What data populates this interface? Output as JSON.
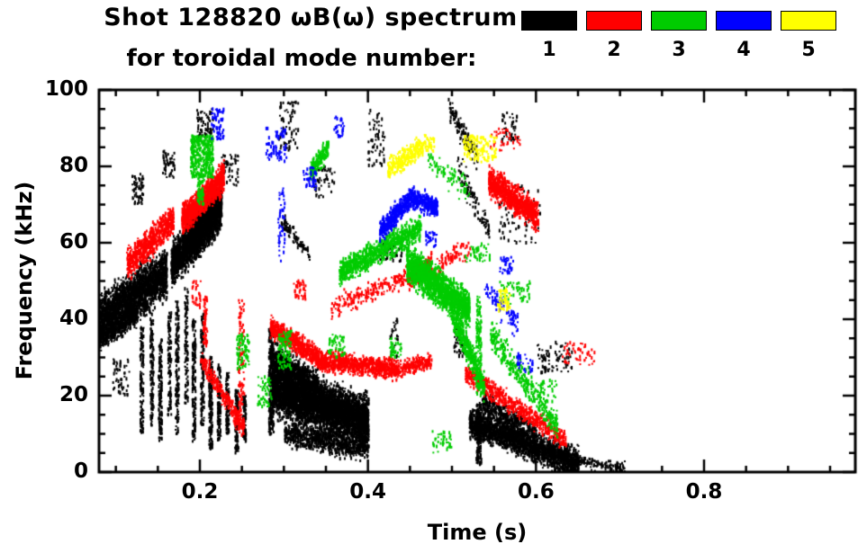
{
  "header": {
    "title_line1": "Shot 128820 ωB(ω) spectrum",
    "title_line2": "for toroidal mode number:"
  },
  "legend": {
    "items": [
      {
        "label": "1",
        "color": "#000000"
      },
      {
        "label": "2",
        "color": "#ff0000"
      },
      {
        "label": "3",
        "color": "#00cc00"
      },
      {
        "label": "4",
        "color": "#0000ff"
      },
      {
        "label": "5",
        "color": "#ffff00"
      }
    ]
  },
  "chart_data": {
    "type": "scatter",
    "title": "Shot 128820 ωB(ω) spectrum for toroidal mode number: 1 2 3 4 5",
    "xlabel": "Time (s)",
    "ylabel": "Frequency (kHz)",
    "xlim": [
      0.08,
      0.98
    ],
    "ylim": [
      0,
      100
    ],
    "grid": false,
    "legend_position": "top-right",
    "x_major_ticks": [
      {
        "value": 0.2,
        "label": "0.2"
      },
      {
        "value": 0.4,
        "label": "0.4"
      },
      {
        "value": 0.6,
        "label": "0.6"
      },
      {
        "value": 0.8,
        "label": "0.8"
      }
    ],
    "x_minor_step": 0.05,
    "y_major_ticks": [
      {
        "value": 0,
        "label": "0"
      },
      {
        "value": 20,
        "label": "20"
      },
      {
        "value": 40,
        "label": "40"
      },
      {
        "value": 60,
        "label": "60"
      },
      {
        "value": 80,
        "label": "80"
      },
      {
        "value": 100,
        "label": "100"
      }
    ],
    "y_minor_step": 5,
    "cluster_format": [
      "t_start_s",
      "t_end_s",
      "freq_start_kHz",
      "freq_end_kHz",
      "freq_spread_kHz",
      "point_count",
      "dist: g=gaussian about trend line, u=uniform in freq range"
    ],
    "series": [
      {
        "name": "toroidal mode n=1",
        "mode": 1,
        "color": "#000000",
        "clusters": [
          [
            0.068,
            0.16,
            38,
            52,
            6,
            2600,
            "g"
          ],
          [
            0.075,
            0.125,
            34,
            42,
            3,
            500,
            "g"
          ],
          [
            0.165,
            0.225,
            54,
            69,
            5,
            2200,
            "g"
          ],
          [
            0.182,
            0.225,
            64,
            72,
            3,
            500,
            "g"
          ],
          [
            0.118,
            0.132,
            70,
            78,
            0,
            60,
            "u"
          ],
          [
            0.155,
            0.17,
            77,
            84,
            0,
            50,
            "u"
          ],
          [
            0.128,
            0.132,
            10,
            38,
            0,
            130,
            "u"
          ],
          [
            0.14,
            0.144,
            12,
            40,
            0,
            120,
            "u"
          ],
          [
            0.15,
            0.154,
            8,
            35,
            0,
            150,
            "u"
          ],
          [
            0.161,
            0.165,
            15,
            42,
            0,
            100,
            "u"
          ],
          [
            0.17,
            0.174,
            10,
            45,
            0,
            140,
            "u"
          ],
          [
            0.181,
            0.185,
            18,
            48,
            0,
            110,
            "u"
          ],
          [
            0.19,
            0.194,
            8,
            40,
            0,
            150,
            "u"
          ],
          [
            0.2,
            0.204,
            12,
            42,
            0,
            120,
            "u"
          ],
          [
            0.21,
            0.214,
            6,
            30,
            0,
            140,
            "u"
          ],
          [
            0.22,
            0.224,
            8,
            28,
            0,
            120,
            "u"
          ],
          [
            0.23,
            0.234,
            10,
            26,
            0,
            100,
            "u"
          ],
          [
            0.241,
            0.245,
            5,
            22,
            0,
            120,
            "u"
          ],
          [
            0.25,
            0.254,
            8,
            20,
            0,
            80,
            "u"
          ],
          [
            0.195,
            0.215,
            87,
            95,
            0,
            70,
            "u"
          ],
          [
            0.225,
            0.245,
            75,
            83,
            0,
            50,
            "u"
          ],
          [
            0.285,
            0.4,
            22,
            13,
            6,
            4500,
            "g"
          ],
          [
            0.283,
            0.34,
            30,
            22,
            4,
            900,
            "g"
          ],
          [
            0.3,
            0.4,
            10,
            6,
            3,
            800,
            "g"
          ],
          [
            0.281,
            0.287,
            10,
            38,
            0,
            250,
            "u"
          ],
          [
            0.295,
            0.33,
            66,
            57,
            2,
            90,
            "g"
          ],
          [
            0.293,
            0.316,
            84,
            97,
            0,
            70,
            "u"
          ],
          [
            0.33,
            0.36,
            72,
            80,
            0,
            50,
            "u"
          ],
          [
            0.398,
            0.42,
            80,
            95,
            0,
            60,
            "u"
          ],
          [
            0.41,
            0.44,
            55,
            60,
            0,
            40,
            "u"
          ],
          [
            0.425,
            0.435,
            30,
            40,
            0,
            30,
            "u"
          ],
          [
            0.5,
            0.515,
            30,
            38,
            0,
            40,
            "u"
          ],
          [
            0.495,
            0.53,
            95,
            82,
            3,
            120,
            "g"
          ],
          [
            0.505,
            0.545,
            80,
            62,
            4,
            100,
            "g"
          ],
          [
            0.555,
            0.605,
            60,
            75,
            0,
            80,
            "u"
          ],
          [
            0.558,
            0.578,
            86,
            94,
            0,
            40,
            "u"
          ],
          [
            0.52,
            0.65,
            13,
            2,
            3.5,
            2200,
            "g"
          ],
          [
            0.528,
            0.534,
            2,
            18,
            0,
            150,
            "u"
          ],
          [
            0.535,
            0.6,
            18,
            10,
            3,
            400,
            "g"
          ],
          [
            0.645,
            0.705,
            3,
            1,
            1.5,
            120,
            "g"
          ],
          [
            0.6,
            0.645,
            26,
            34,
            0,
            80,
            "u"
          ],
          [
            0.095,
            0.115,
            20,
            30,
            0,
            50,
            "u"
          ]
        ]
      },
      {
        "name": "toroidal mode n=2",
        "mode": 2,
        "color": "#ff0000",
        "clusters": [
          [
            0.112,
            0.168,
            54,
            66,
            3.5,
            700,
            "g"
          ],
          [
            0.178,
            0.228,
            66,
            77,
            3.5,
            1100,
            "g"
          ],
          [
            0.2,
            0.252,
            30,
            11,
            2.5,
            300,
            "g"
          ],
          [
            0.203,
            0.208,
            33,
            46,
            0,
            60,
            "u"
          ],
          [
            0.283,
            0.345,
            38,
            29,
            2.5,
            700,
            "g"
          ],
          [
            0.345,
            0.435,
            29,
            27,
            2.5,
            800,
            "g"
          ],
          [
            0.435,
            0.475,
            27,
            29,
            2,
            200,
            "g"
          ],
          [
            0.355,
            0.5,
            43,
            56,
            2.5,
            300,
            "g"
          ],
          [
            0.445,
            0.475,
            50,
            55,
            2.5,
            200,
            "g"
          ],
          [
            0.543,
            0.602,
            76,
            67,
            3.5,
            900,
            "g"
          ],
          [
            0.515,
            0.635,
            26,
            8,
            2.5,
            600,
            "g"
          ],
          [
            0.245,
            0.252,
            12,
            45,
            0,
            90,
            "u"
          ],
          [
            0.31,
            0.325,
            45,
            50,
            0,
            40,
            "u"
          ],
          [
            0.545,
            0.58,
            84,
            90,
            0,
            40,
            "u"
          ],
          [
            0.497,
            0.522,
            55,
            60,
            0,
            40,
            "u"
          ],
          [
            0.63,
            0.67,
            28,
            34,
            0,
            50,
            "u"
          ],
          [
            0.19,
            0.2,
            43,
            50,
            0,
            30,
            "u"
          ]
        ]
      },
      {
        "name": "toroidal mode n=3",
        "mode": 3,
        "color": "#00cc00",
        "clusters": [
          [
            0.188,
            0.215,
            77,
            88,
            0,
            350,
            "u"
          ],
          [
            0.196,
            0.204,
            70,
            78,
            0,
            60,
            "u"
          ],
          [
            0.243,
            0.258,
            27,
            36,
            0,
            80,
            "u"
          ],
          [
            0.292,
            0.308,
            27,
            37,
            0,
            100,
            "u"
          ],
          [
            0.268,
            0.285,
            17,
            25,
            0,
            50,
            "u"
          ],
          [
            0.33,
            0.352,
            78,
            85,
            2.5,
            160,
            "g"
          ],
          [
            0.365,
            0.462,
            52,
            64,
            3,
            900,
            "g"
          ],
          [
            0.47,
            0.52,
            82,
            73,
            3,
            80,
            "g"
          ],
          [
            0.445,
            0.52,
            55,
            42,
            4.5,
            1800,
            "g"
          ],
          [
            0.498,
            0.538,
            42,
            22,
            3.5,
            450,
            "g"
          ],
          [
            0.528,
            0.534,
            20,
            46,
            0,
            120,
            "u"
          ],
          [
            0.545,
            0.625,
            36,
            12,
            3.5,
            350,
            "g"
          ],
          [
            0.555,
            0.592,
            44,
            50,
            0,
            60,
            "u"
          ],
          [
            0.352,
            0.372,
            30,
            36,
            0,
            50,
            "u"
          ],
          [
            0.425,
            0.44,
            30,
            35,
            0,
            40,
            "u"
          ],
          [
            0.475,
            0.5,
            5,
            11,
            0,
            40,
            "u"
          ],
          [
            0.515,
            0.545,
            55,
            60,
            0,
            40,
            "u"
          ],
          [
            0.6,
            0.625,
            18,
            24,
            0,
            40,
            "u"
          ]
        ]
      },
      {
        "name": "toroidal mode n=4",
        "mode": 4,
        "color": "#0000ff",
        "clusters": [
          [
            0.413,
            0.452,
            63,
            72,
            2.5,
            450,
            "g"
          ],
          [
            0.452,
            0.482,
            72,
            69,
            2.5,
            300,
            "g"
          ],
          [
            0.213,
            0.228,
            87,
            95,
            0,
            60,
            "u"
          ],
          [
            0.278,
            0.302,
            81,
            90,
            0,
            70,
            "u"
          ],
          [
            0.292,
            0.3,
            55,
            75,
            0,
            50,
            "u"
          ],
          [
            0.322,
            0.338,
            74,
            80,
            0,
            40,
            "u"
          ],
          [
            0.358,
            0.372,
            87,
            93,
            0,
            30,
            "u"
          ],
          [
            0.538,
            0.578,
            48,
            38,
            3,
            90,
            "g"
          ],
          [
            0.556,
            0.572,
            52,
            57,
            0,
            30,
            "u"
          ],
          [
            0.575,
            0.595,
            25,
            31,
            0,
            30,
            "u"
          ],
          [
            0.468,
            0.482,
            59,
            63,
            0,
            30,
            "u"
          ]
        ]
      },
      {
        "name": "toroidal mode n=5",
        "mode": 5,
        "color": "#ffff00",
        "clusters": [
          [
            0.423,
            0.468,
            79,
            86,
            2.5,
            260,
            "g"
          ],
          [
            0.513,
            0.552,
            81,
            88,
            0,
            140,
            "u"
          ],
          [
            0.553,
            0.568,
            42,
            48,
            0,
            50,
            "u"
          ],
          [
            0.468,
            0.478,
            84,
            88,
            0,
            30,
            "u"
          ]
        ]
      }
    ]
  }
}
